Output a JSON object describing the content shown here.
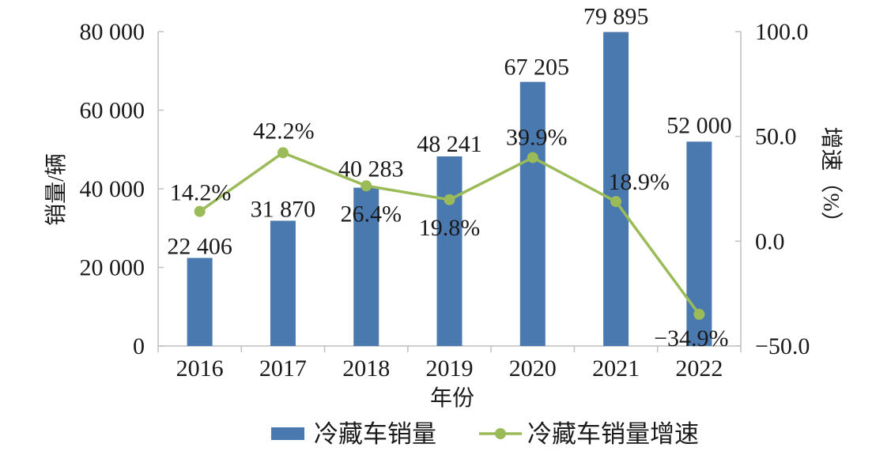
{
  "chart_data": {
    "type": "bar",
    "categories": [
      "2016",
      "2017",
      "2018",
      "2019",
      "2020",
      "2021",
      "2022"
    ],
    "xlabel": "年份",
    "ylabel": "销量/辆",
    "y2label": "增速（%）",
    "ylim": [
      0,
      80000
    ],
    "y2lim": [
      -50,
      100
    ],
    "yticks": [
      0,
      20000,
      40000,
      60000,
      80000
    ],
    "ytick_labels": [
      "0",
      "20 000",
      "40 000",
      "60 000",
      "80 000"
    ],
    "y2ticks": [
      -50,
      0,
      50,
      100
    ],
    "y2tick_labels": [
      "−50.0",
      "0.0",
      "50.0",
      "100.0"
    ],
    "grid": false,
    "legend": "bottom",
    "series": [
      {
        "name": "冷藏车销量",
        "type": "bar",
        "axis": "left",
        "color": "#4a79b0",
        "values": [
          22406,
          31870,
          40283,
          48241,
          67205,
          79895,
          52000
        ],
        "labels": [
          "22 406",
          "31 870",
          "40 283",
          "48 241",
          "67 205",
          "79 895",
          "52 000"
        ]
      },
      {
        "name": "冷藏车销量增速",
        "type": "line",
        "axis": "right",
        "color": "#9bbb59",
        "values": [
          14.2,
          42.2,
          26.4,
          19.8,
          39.9,
          18.9,
          -34.9
        ],
        "labels": [
          "14.2%",
          "42.2%",
          "26.4%",
          "19.8%",
          "39.9%",
          "18.9%",
          "−34.9%"
        ]
      }
    ]
  }
}
